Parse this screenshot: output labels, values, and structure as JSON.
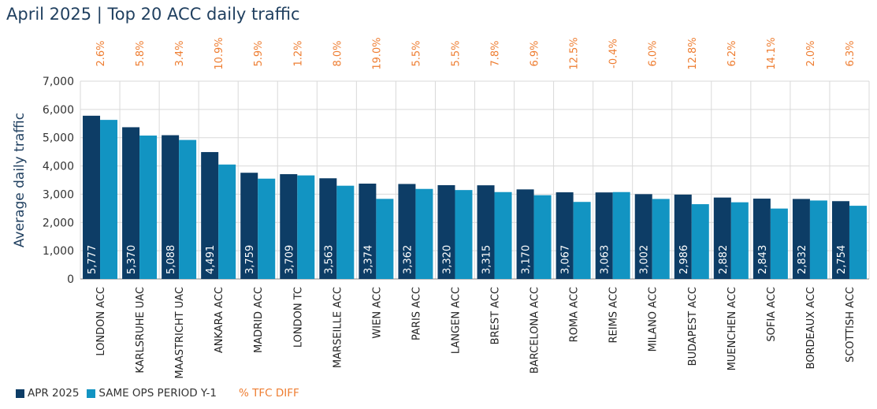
{
  "chart_data": {
    "type": "bar",
    "title": "April 2025 | Top 20 ACC daily traffic",
    "ylabel": "Average daily traffic",
    "ylim": [
      0,
      7000
    ],
    "yticks": [
      "0",
      "1,000",
      "2,000",
      "3,000",
      "4,000",
      "5,000",
      "6,000",
      "7,000"
    ],
    "grid": true,
    "legend_position": "bottom-left",
    "categories": [
      "LONDON ACC",
      "KARLSRUHE UAC",
      "MAASTRICHT UAC",
      "ANKARA ACC",
      "MADRID ACC",
      "LONDON TC",
      "MARSEILLE ACC",
      "WIEN ACC",
      "PARIS ACC",
      "LANGEN ACC",
      "BREST ACC",
      "BARCELONA ACC",
      "ROMA ACC",
      "REIMS ACC",
      "MILANO ACC",
      "BUDAPEST ACC",
      "MUENCHEN ACC",
      "SOFIA ACC",
      "BORDEAUX ACC",
      "SCOTTISH ACC"
    ],
    "series": [
      {
        "name": "APR 2025",
        "color": "#0d3d66",
        "values": [
          5777,
          5370,
          5088,
          4491,
          3759,
          3709,
          3563,
          3374,
          3362,
          3320,
          3315,
          3170,
          3067,
          3063,
          3002,
          2986,
          2882,
          2843,
          2832,
          2754
        ],
        "labels": [
          "5,777",
          "5,370",
          "5,088",
          "4,491",
          "3,759",
          "3,709",
          "3,563",
          "3,374",
          "3,362",
          "3,320",
          "3,315",
          "3,170",
          "3,067",
          "3,063",
          "3,002",
          "2,986",
          "2,882",
          "2,843",
          "2,832",
          "2,754"
        ]
      },
      {
        "name": "SAME OPS PERIOD Y-1",
        "color": "#1294c2",
        "values": [
          5630,
          5075,
          4920,
          4050,
          3550,
          3665,
          3300,
          2835,
          3187,
          3147,
          3075,
          2965,
          2727,
          3075,
          2832,
          2647,
          2714,
          2492,
          2777,
          2591
        ]
      }
    ],
    "pct_diff": {
      "name": "% TFC DIFF",
      "color": "#ee7d31",
      "labels": [
        "2.6%",
        "5.8%",
        "3.4%",
        "10.9%",
        "5.9%",
        "1.2%",
        "8.0%",
        "19.0%",
        "5.5%",
        "5.5%",
        "7.8%",
        "6.9%",
        "12.5%",
        "-0.4%",
        "6.0%",
        "12.8%",
        "6.2%",
        "14.1%",
        "2.0%",
        "6.3%"
      ]
    }
  }
}
